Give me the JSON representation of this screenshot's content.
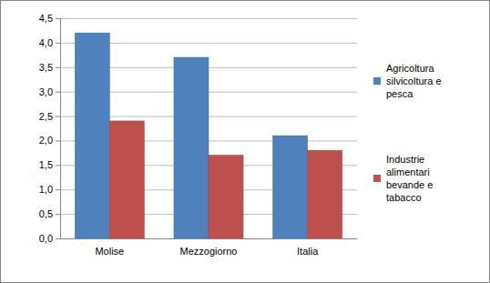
{
  "chart_data": {
    "type": "bar",
    "categories": [
      "Molise",
      "Mezzogiorno",
      "Italia"
    ],
    "series": [
      {
        "name": "Agricoltura silvicoltura e pesca",
        "color": "#4f81bd",
        "values": [
          4.2,
          3.7,
          2.1
        ]
      },
      {
        "name": "Industrie alimentari bevande e tabacco",
        "color": "#c0504d",
        "values": [
          2.4,
          1.7,
          1.8
        ]
      }
    ],
    "ylim": [
      0,
      4.5
    ],
    "yticks": [
      {
        "value": 0,
        "label": "0,0"
      },
      {
        "value": 0.5,
        "label": "0,5"
      },
      {
        "value": 1,
        "label": "1,0"
      },
      {
        "value": 1.5,
        "label": "1,5"
      },
      {
        "value": 2,
        "label": "2,0"
      },
      {
        "value": 2.5,
        "label": "2,5"
      },
      {
        "value": 3,
        "label": "3,0"
      },
      {
        "value": 3.5,
        "label": "3,5"
      },
      {
        "value": 4,
        "label": "4,0"
      },
      {
        "value": 4.5,
        "label": "4,5"
      }
    ],
    "grid": true,
    "legend": "right"
  }
}
